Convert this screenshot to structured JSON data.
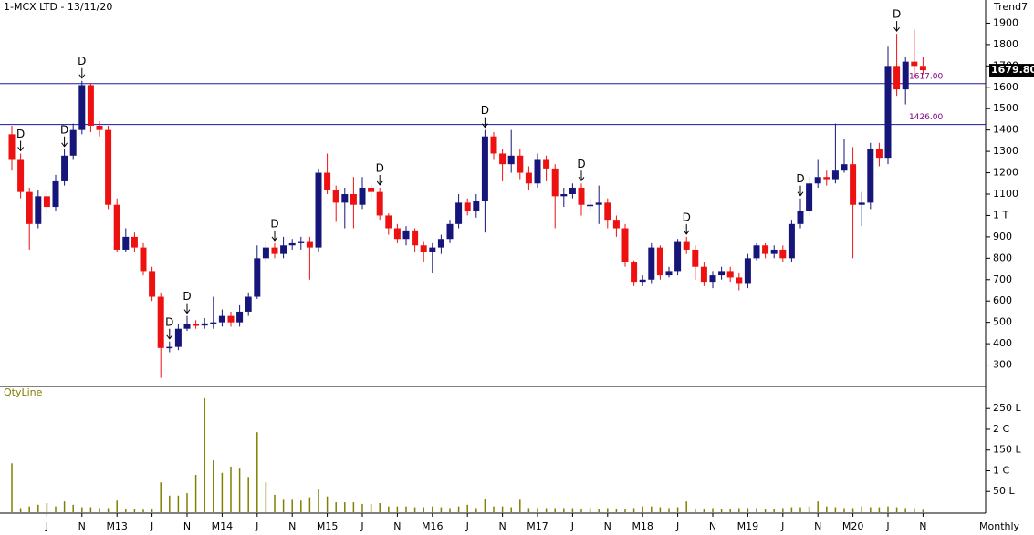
{
  "chart_data": [
    {
      "type": "candlestick",
      "title": "1-MCX LTD - 13/11/20",
      "subtitle": "Trend7",
      "categories": [
        null,
        null,
        null,
        null,
        "J",
        null,
        null,
        null,
        "N",
        null,
        null,
        null,
        "M13",
        null,
        null,
        null,
        "J",
        null,
        null,
        null,
        "N",
        null,
        null,
        null,
        "M14",
        null,
        null,
        null,
        "J",
        null,
        null,
        null,
        "N",
        null,
        null,
        null,
        "M15",
        null,
        null,
        null,
        "J",
        null,
        null,
        null,
        "N",
        null,
        null,
        null,
        "M16",
        null,
        null,
        null,
        "J",
        null,
        null,
        null,
        "N",
        null,
        null,
        null,
        "M17",
        null,
        null,
        null,
        "J",
        null,
        null,
        null,
        "N",
        null,
        null,
        null,
        "M18",
        null,
        null,
        null,
        "J",
        null,
        null,
        null,
        "N",
        null,
        null,
        null,
        "M19",
        null,
        null,
        null,
        "J",
        null,
        null,
        null,
        "N",
        null,
        null,
        null,
        "M20",
        null,
        null,
        null,
        "J",
        null,
        null,
        null,
        "N"
      ],
      "open": [
        1380,
        1260,
        1110,
        960,
        1090,
        1040,
        1160,
        1280,
        1400,
        1610,
        1420,
        1400,
        1050,
        840,
        900,
        850,
        740,
        620,
        380,
        385,
        470,
        490,
        485,
        495,
        500,
        530,
        500,
        550,
        620,
        800,
        850,
        820,
        860,
        870,
        880,
        850,
        1200,
        1120,
        1060,
        1100,
        1050,
        1130,
        1110,
        1000,
        940,
        890,
        930,
        860,
        830,
        850,
        890,
        960,
        1060,
        1020,
        1070,
        1370,
        1290,
        1240,
        1280,
        1200,
        1150,
        1260,
        1220,
        1090,
        1100,
        1130,
        1050,
        1050,
        1060,
        980,
        940,
        780,
        690,
        700,
        850,
        720,
        740,
        880,
        840,
        760,
        690,
        720,
        740,
        710,
        680,
        800,
        860,
        820,
        840,
        800,
        960,
        1020,
        1150,
        1180,
        1170,
        1210,
        1240,
        1050,
        1060,
        1310,
        1270,
        1700,
        1590,
        1720,
        1700
      ],
      "high": [
        1420,
        1290,
        1130,
        1120,
        1120,
        1190,
        1310,
        1430,
        1630,
        1620,
        1440,
        1420,
        1080,
        940,
        920,
        870,
        760,
        640,
        410,
        490,
        530,
        510,
        520,
        620,
        560,
        550,
        580,
        640,
        860,
        880,
        870,
        900,
        890,
        900,
        900,
        1220,
        1290,
        1140,
        1130,
        1180,
        1180,
        1150,
        1130,
        1010,
        960,
        950,
        940,
        880,
        870,
        910,
        980,
        1100,
        1080,
        1100,
        1400,
        1390,
        1310,
        1400,
        1310,
        1230,
        1290,
        1280,
        1240,
        1130,
        1150,
        1150,
        1080,
        1140,
        1080,
        1000,
        960,
        790,
        720,
        870,
        860,
        760,
        890,
        900,
        860,
        780,
        740,
        760,
        760,
        730,
        820,
        870,
        870,
        860,
        860,
        980,
        1080,
        1180,
        1260,
        1210,
        1430,
        1360,
        1320,
        1110,
        1340,
        1340,
        1790,
        1850,
        1740,
        1870,
        1740
      ],
      "low": [
        1210,
        1080,
        840,
        940,
        1010,
        1020,
        1140,
        1260,
        1380,
        1390,
        1370,
        1030,
        830,
        830,
        830,
        720,
        600,
        240,
        360,
        370,
        460,
        470,
        470,
        470,
        480,
        480,
        480,
        530,
        610,
        780,
        800,
        800,
        840,
        840,
        700,
        830,
        1100,
        970,
        940,
        940,
        1030,
        1080,
        980,
        910,
        870,
        860,
        830,
        780,
        730,
        820,
        870,
        940,
        1000,
        990,
        920,
        1260,
        1160,
        1200,
        1170,
        1120,
        1130,
        1160,
        940,
        1040,
        1080,
        1000,
        1020,
        960,
        940,
        900,
        760,
        670,
        670,
        680,
        700,
        710,
        720,
        820,
        700,
        670,
        660,
        700,
        690,
        650,
        660,
        790,
        800,
        800,
        780,
        780,
        940,
        1000,
        1130,
        1140,
        1150,
        1200,
        800,
        950,
        1030,
        1230,
        1240,
        1560,
        1520,
        1650,
        1660
      ],
      "close": [
        1260,
        1110,
        960,
        1090,
        1040,
        1160,
        1280,
        1400,
        1610,
        1420,
        1400,
        1050,
        840,
        900,
        850,
        740,
        620,
        380,
        385,
        470,
        490,
        485,
        495,
        500,
        530,
        500,
        550,
        620,
        800,
        850,
        820,
        860,
        870,
        880,
        850,
        1200,
        1120,
        1060,
        1100,
        1050,
        1130,
        1110,
        1000,
        940,
        890,
        930,
        860,
        830,
        850,
        890,
        960,
        1060,
        1020,
        1070,
        1370,
        1290,
        1240,
        1280,
        1200,
        1150,
        1260,
        1220,
        1090,
        1100,
        1130,
        1050,
        1050,
        1060,
        980,
        940,
        780,
        690,
        700,
        850,
        720,
        740,
        880,
        840,
        760,
        690,
        720,
        740,
        710,
        680,
        800,
        860,
        820,
        840,
        800,
        960,
        1020,
        1150,
        1180,
        1170,
        1210,
        1240,
        1050,
        1060,
        1310,
        1270,
        1700,
        1590,
        1720,
        1700,
        1679.8
      ],
      "up_color": "#16167a",
      "down_color": "#ee1111",
      "ylim": [
        200,
        2000
      ],
      "yticks": [
        300,
        400,
        500,
        600,
        700,
        800,
        900,
        {
          "value": 1000,
          "label": "1 T"
        },
        1100,
        1200,
        1300,
        1400,
        1500,
        1600,
        1700,
        1800,
        1900
      ],
      "levels": [
        {
          "value": 1617,
          "label": "1617.00"
        },
        {
          "value": 1426,
          "label": "1426.00"
        }
      ],
      "level_color": "#1a1aa0",
      "level_label_color": "#800080",
      "last_price": {
        "value": 1679.8,
        "label": "1679.80"
      },
      "signals": [
        {
          "index": 1,
          "label": "D"
        },
        {
          "index": 6,
          "label": "D"
        },
        {
          "index": 8,
          "label": "D"
        },
        {
          "index": 18,
          "label": "D"
        },
        {
          "index": 20,
          "label": "D"
        },
        {
          "index": 30,
          "label": "D"
        },
        {
          "index": 42,
          "label": "D"
        },
        {
          "index": 54,
          "label": "D"
        },
        {
          "index": 65,
          "label": "D"
        },
        {
          "index": 77,
          "label": "D"
        },
        {
          "index": 90,
          "label": "D"
        },
        {
          "index": 101,
          "label": "D"
        }
      ],
      "period": "Monthly"
    },
    {
      "type": "bar",
      "title": "QtyLine",
      "color": "#808000",
      "values": [
        118,
        10,
        14,
        18,
        22,
        14,
        26,
        18,
        12,
        12,
        10,
        10,
        28,
        8,
        8,
        6,
        8,
        72,
        40,
        40,
        46,
        90,
        275,
        125,
        95,
        110,
        105,
        85,
        193,
        72,
        42,
        30,
        30,
        28,
        36,
        55,
        38,
        24,
        24,
        24,
        20,
        20,
        22,
        14,
        14,
        14,
        12,
        12,
        14,
        12,
        10,
        14,
        18,
        10,
        32,
        14,
        14,
        12,
        30,
        10,
        10,
        10,
        10,
        10,
        10,
        8,
        10,
        8,
        10,
        8,
        8,
        10,
        14,
        14,
        12,
        10,
        12,
        26,
        8,
        8,
        10,
        8,
        8,
        10,
        10,
        10,
        8,
        8,
        10,
        12,
        12,
        14,
        26,
        14,
        12,
        10,
        10,
        14,
        12,
        12,
        14,
        12,
        10,
        10,
        6
      ],
      "ylim": [
        0,
        290
      ],
      "yticks": [
        {
          "value": 50,
          "label": "50 L"
        },
        {
          "value": 100,
          "label": "1 C"
        },
        {
          "value": 150,
          "label": "150 L"
        },
        {
          "value": 200,
          "label": "2 C"
        },
        {
          "value": 250,
          "label": "250 L"
        }
      ]
    }
  ]
}
